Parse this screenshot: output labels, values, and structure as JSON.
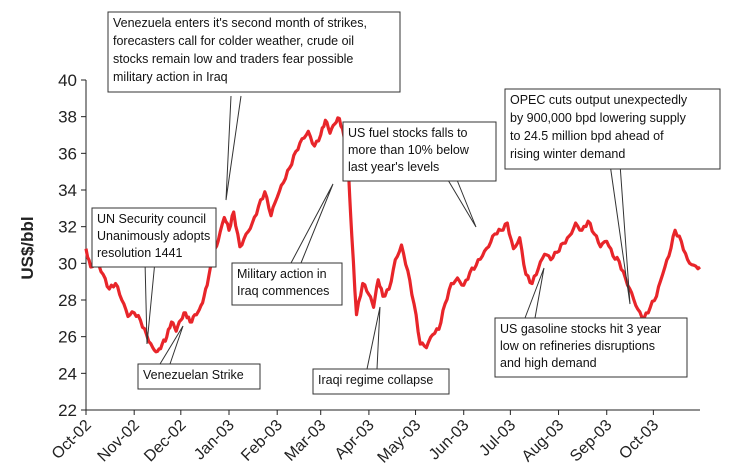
{
  "chart_data": {
    "type": "line",
    "title": "",
    "xlabel": "",
    "ylabel": "US$/bbl",
    "ylim": [
      22,
      40
    ],
    "yticks": [
      22,
      24,
      26,
      28,
      30,
      32,
      34,
      36,
      38,
      40
    ],
    "xlim": [
      "2002-10-01",
      "2003-10-31"
    ],
    "xticks": [
      {
        "date": "2002-10-01",
        "label": "Oct-02"
      },
      {
        "date": "2002-11-01",
        "label": "Nov-02"
      },
      {
        "date": "2002-12-01",
        "label": "Dec-02"
      },
      {
        "date": "2003-01-01",
        "label": "Jan-03"
      },
      {
        "date": "2003-02-01",
        "label": "Feb-03"
      },
      {
        "date": "2003-03-01",
        "label": "Mar-03"
      },
      {
        "date": "2003-04-01",
        "label": "Apr-03"
      },
      {
        "date": "2003-05-01",
        "label": "May-03"
      },
      {
        "date": "2003-06-01",
        "label": "Jun-03"
      },
      {
        "date": "2003-07-01",
        "label": "Jul-03"
      },
      {
        "date": "2003-08-01",
        "label": "Aug-03"
      },
      {
        "date": "2003-09-01",
        "label": "Sep-03"
      },
      {
        "date": "2003-10-01",
        "label": "Oct-03"
      }
    ],
    "grid": false,
    "line_color": "#e8252a",
    "series": [
      {
        "name": "",
        "x": [
          "2002-10-01",
          "2002-10-04",
          "2002-10-08",
          "2002-10-12",
          "2002-10-16",
          "2002-10-20",
          "2002-10-24",
          "2002-10-28",
          "2002-11-01",
          "2002-11-05",
          "2002-11-09",
          "2002-11-13",
          "2002-11-16",
          "2002-11-19",
          "2002-11-22",
          "2002-11-25",
          "2002-11-28",
          "2002-12-01",
          "2002-12-04",
          "2002-12-07",
          "2002-12-10",
          "2002-12-13",
          "2002-12-16",
          "2002-12-19",
          "2002-12-22",
          "2002-12-25",
          "2002-12-29",
          "2003-01-01",
          "2003-01-04",
          "2003-01-08",
          "2003-01-12",
          "2003-01-16",
          "2003-01-20",
          "2003-01-24",
          "2003-01-28",
          "2003-02-01",
          "2003-02-05",
          "2003-02-09",
          "2003-02-13",
          "2003-02-17",
          "2003-02-21",
          "2003-02-25",
          "2003-03-01",
          "2003-03-04",
          "2003-03-07",
          "2003-03-10",
          "2003-03-13",
          "2003-03-16",
          "2003-03-18",
          "2003-03-19",
          "2003-03-21",
          "2003-03-24",
          "2003-03-28",
          "2003-04-01",
          "2003-04-04",
          "2003-04-07",
          "2003-04-10",
          "2003-04-14",
          "2003-04-18",
          "2003-04-22",
          "2003-04-26",
          "2003-04-30",
          "2003-05-04",
          "2003-05-08",
          "2003-05-12",
          "2003-05-16",
          "2003-05-20",
          "2003-05-24",
          "2003-05-28",
          "2003-06-01",
          "2003-06-05",
          "2003-06-09",
          "2003-06-13",
          "2003-06-17",
          "2003-06-21",
          "2003-06-25",
          "2003-06-29",
          "2003-07-03",
          "2003-07-07",
          "2003-07-11",
          "2003-07-15",
          "2003-07-19",
          "2003-07-23",
          "2003-07-27",
          "2003-07-31",
          "2003-08-04",
          "2003-08-08",
          "2003-08-12",
          "2003-08-16",
          "2003-08-20",
          "2003-08-24",
          "2003-08-28",
          "2003-09-01",
          "2003-09-05",
          "2003-09-09",
          "2003-09-13",
          "2003-09-17",
          "2003-09-21",
          "2003-09-25",
          "2003-09-29",
          "2003-10-03",
          "2003-10-07",
          "2003-10-11",
          "2003-10-15",
          "2003-10-19",
          "2003-10-23",
          "2003-10-27",
          "2003-10-31"
        ],
        "y": [
          30.8,
          29.8,
          30.2,
          29.4,
          28.6,
          28.9,
          28.0,
          27.1,
          27.3,
          26.9,
          26.1,
          25.4,
          25.2,
          25.6,
          26.0,
          26.8,
          26.3,
          26.9,
          27.3,
          26.8,
          27.2,
          27.5,
          28.2,
          29.3,
          30.4,
          31.2,
          32.5,
          31.8,
          32.8,
          30.9,
          31.6,
          32.2,
          33.1,
          33.9,
          32.6,
          33.6,
          34.4,
          35.2,
          36.1,
          36.8,
          37.2,
          36.4,
          37.0,
          37.8,
          37.1,
          37.6,
          37.9,
          36.9,
          35.6,
          34.8,
          31.5,
          27.2,
          28.9,
          28.3,
          27.6,
          29.1,
          28.2,
          28.6,
          30.2,
          31.0,
          29.6,
          27.8,
          25.6,
          25.4,
          26.1,
          26.4,
          27.8,
          28.9,
          29.2,
          28.8,
          29.5,
          29.9,
          30.4,
          30.9,
          31.6,
          31.8,
          32.2,
          30.8,
          31.4,
          29.4,
          28.9,
          29.7,
          30.5,
          30.2,
          30.6,
          31.1,
          31.5,
          32.2,
          31.8,
          32.3,
          31.6,
          30.9,
          31.2,
          30.4,
          30.1,
          29.2,
          28.4,
          27.5,
          27.0,
          27.6,
          28.2,
          29.4,
          30.4,
          31.8,
          31.2,
          30.2,
          29.9,
          29.8
        ]
      }
    ],
    "annotations": [
      {
        "text": [
          "Venezuela enters it's second month of strikes,",
          "forecasters call for colder weather, crude oil",
          "stocks remain low and traders fear possible",
          "military action in Iraq"
        ]
      },
      {
        "text": [
          "UN Security council",
          "Unanimously adopts",
          "resolution 1441"
        ]
      },
      {
        "text": [
          "Venezuelan Strike"
        ]
      },
      {
        "text": [
          "Military action in",
          "Iraq commences"
        ]
      },
      {
        "text": [
          "US fuel stocks falls to",
          "more than 10% below",
          "last year's levels"
        ]
      },
      {
        "text": [
          "Iraqi regime collapse"
        ]
      },
      {
        "text": [
          "OPEC cuts output unexpectedly",
          "by 900,000 bpd lowering supply",
          "to 24.5 million bpd ahead of",
          "rising winter demand"
        ]
      },
      {
        "text": [
          "US gasoline stocks hit 3 year",
          "low on refineries disruptions",
          "and high demand"
        ]
      }
    ]
  }
}
